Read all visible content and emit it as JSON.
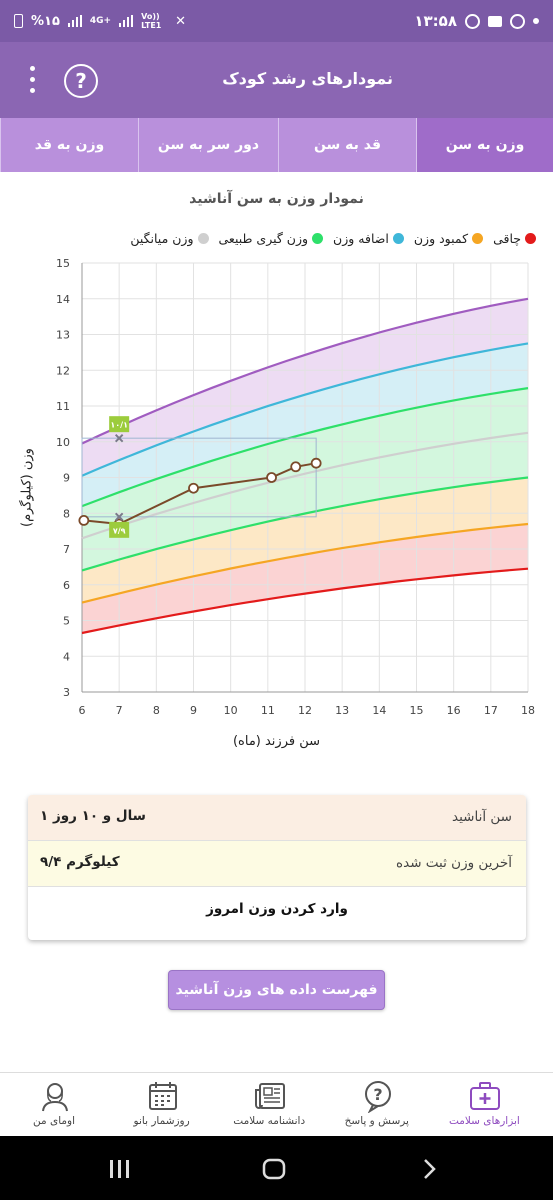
{
  "status_bar": {
    "time": "۱۳:۵۸",
    "battery": "%۱۵",
    "network": "4G+",
    "volte": "Vo)) LTE1"
  },
  "app_bar": {
    "title": "نمودارهای رشد کودک",
    "help_icon": "help-circle-icon",
    "menu_icon": "more-vertical-icon"
  },
  "tabs": [
    {
      "label": "وزن به سن",
      "active": true
    },
    {
      "label": "قد به سن",
      "active": false
    },
    {
      "label": "دور سر به سن",
      "active": false
    },
    {
      "label": "وزن به قد",
      "active": false
    }
  ],
  "chart_title": "نمودار وزن به سن آناشید",
  "legend": [
    {
      "label": "چاقی",
      "color": "#e31b1b"
    },
    {
      "label": "کمبود وزن",
      "color": "#f5a623"
    },
    {
      "label": "اضافه وزن",
      "color": "#3fb7d9"
    },
    {
      "label": "وزن گیری طبیعی",
      "color": "#2ee06a"
    },
    {
      "label": "وزن میانگین",
      "color": "#cfcfcf"
    }
  ],
  "chart_data": {
    "type": "line",
    "xlabel": "سن فرزند (ماه)",
    "ylabel": "وزن (کیلوگرم)",
    "xlim": [
      6,
      18
    ],
    "ylim": [
      3,
      15
    ],
    "x_ticks": [
      6,
      7,
      8,
      9,
      10,
      11,
      12,
      13,
      14,
      15,
      16,
      17,
      18
    ],
    "y_ticks": [
      3,
      4,
      5,
      6,
      7,
      8,
      9,
      10,
      11,
      12,
      13,
      14,
      15
    ],
    "grid": true,
    "curves": [
      {
        "color": "#e31b1b",
        "start": [
          6,
          4.65
        ],
        "end": [
          18,
          6.45
        ]
      },
      {
        "color": "#f5a623",
        "start": [
          6,
          5.5
        ],
        "end": [
          18,
          7.7
        ]
      },
      {
        "color": "#2ee06a",
        "start": [
          6,
          6.4
        ],
        "end": [
          18,
          9.0
        ]
      },
      {
        "color": "#cfcfcf",
        "start": [
          6,
          7.3
        ],
        "end": [
          18,
          10.25
        ]
      },
      {
        "color": "#2ee06a",
        "start": [
          6,
          8.2
        ],
        "end": [
          18,
          11.5
        ]
      },
      {
        "color": "#3fb7d9",
        "start": [
          6,
          9.05
        ],
        "end": [
          18,
          12.75
        ]
      },
      {
        "color": "#a05cc0",
        "start": [
          6,
          9.95
        ],
        "end": [
          18,
          14.0
        ]
      }
    ],
    "series": [
      {
        "x": [
          6.05,
          7.0,
          9.0,
          11.1,
          11.75,
          12.3
        ],
        "y": [
          7.8,
          7.7,
          8.7,
          9.0,
          9.3,
          9.4
        ]
      }
    ],
    "markers": [
      {
        "x": 7.0,
        "y": 10.1,
        "label": "۱۰/۱"
      },
      {
        "x": 7.0,
        "y": 7.9,
        "label": "۷/۹"
      }
    ]
  },
  "info": {
    "age_label": "سن آناشید",
    "age_value": "۱ سال و ۱۰ روز",
    "last_weight_label": "آخرین وزن ثبت شده",
    "last_weight_value": "۹/۴ کیلوگرم",
    "enter_weight": "وارد کردن وزن امروز"
  },
  "list_button": "فهرست داده های وزن آناشید",
  "bottom_nav": [
    {
      "label": "ابزارهای سلامت",
      "icon": "medical-kit-icon",
      "active": true
    },
    {
      "label": "پرسش و پاسخ",
      "icon": "question-bubble-icon",
      "active": false
    },
    {
      "label": "دانشنامه سلامت",
      "icon": "newspaper-icon",
      "active": false
    },
    {
      "label": "روزشمار بانو",
      "icon": "calendar-icon",
      "active": false
    },
    {
      "label": "اومای من",
      "icon": "profile-icon",
      "active": false
    }
  ]
}
